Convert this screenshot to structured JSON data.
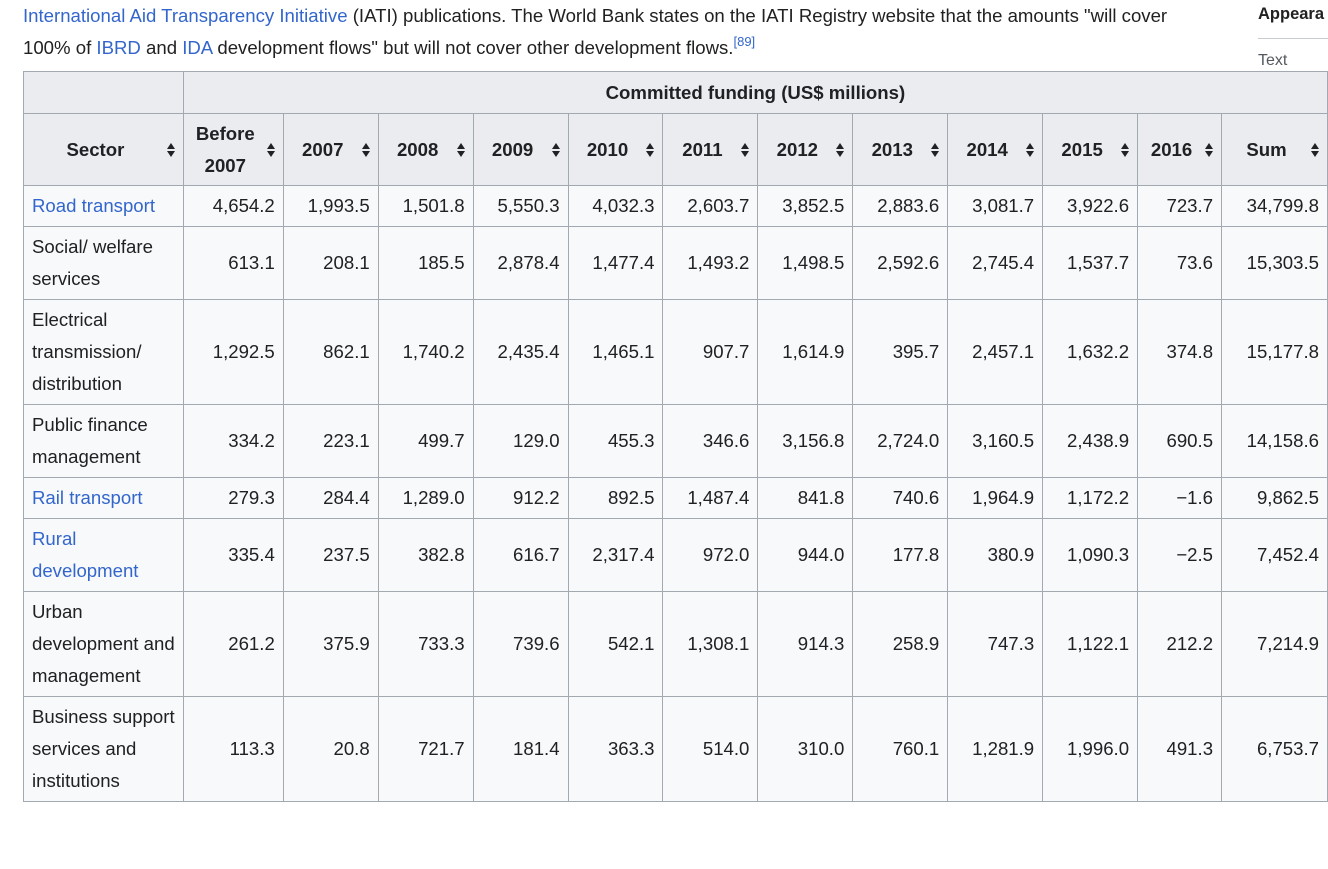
{
  "intro": {
    "link_iati": "International Aid Transparency Initiative",
    "text_1": " (IATI) publications. The World Bank states on the IATI Registry website that the amounts \"will cover 100% of ",
    "link_ibrd": "IBRD",
    "text_2": " and ",
    "link_ida": "IDA",
    "text_3": " development flows\" but will not cover other development flows.",
    "ref": "[89]"
  },
  "sidebar": {
    "title": "Appeara",
    "text_label": "Text"
  },
  "table": {
    "group_header": "Committed funding (US$ millions)",
    "sector_header": "Sector",
    "columns": [
      "Before 2007",
      "2007",
      "2008",
      "2009",
      "2010",
      "2011",
      "2012",
      "2013",
      "2014",
      "2015",
      "2016",
      "Sum"
    ],
    "rows": [
      {
        "sector": "Road transport",
        "is_link": true,
        "values": [
          "4,654.2",
          "1,993.5",
          "1,501.8",
          "5,550.3",
          "4,032.3",
          "2,603.7",
          "3,852.5",
          "2,883.6",
          "3,081.7",
          "3,922.6",
          "723.7",
          "34,799.8"
        ]
      },
      {
        "sector": "Social/ welfare services",
        "is_link": false,
        "values": [
          "613.1",
          "208.1",
          "185.5",
          "2,878.4",
          "1,477.4",
          "1,493.2",
          "1,498.5",
          "2,592.6",
          "2,745.4",
          "1,537.7",
          "73.6",
          "15,303.5"
        ]
      },
      {
        "sector": "Electrical transmission/ distribution",
        "is_link": false,
        "values": [
          "1,292.5",
          "862.1",
          "1,740.2",
          "2,435.4",
          "1,465.1",
          "907.7",
          "1,614.9",
          "395.7",
          "2,457.1",
          "1,632.2",
          "374.8",
          "15,177.8"
        ]
      },
      {
        "sector": "Public finance management",
        "is_link": false,
        "values": [
          "334.2",
          "223.1",
          "499.7",
          "129.0",
          "455.3",
          "346.6",
          "3,156.8",
          "2,724.0",
          "3,160.5",
          "2,438.9",
          "690.5",
          "14,158.6"
        ]
      },
      {
        "sector": "Rail transport",
        "is_link": true,
        "values": [
          "279.3",
          "284.4",
          "1,289.0",
          "912.2",
          "892.5",
          "1,487.4",
          "841.8",
          "740.6",
          "1,964.9",
          "1,172.2",
          "−1.6",
          "9,862.5"
        ]
      },
      {
        "sector": "Rural development",
        "is_link": true,
        "values": [
          "335.4",
          "237.5",
          "382.8",
          "616.7",
          "2,317.4",
          "972.0",
          "944.0",
          "177.8",
          "380.9",
          "1,090.3",
          "−2.5",
          "7,452.4"
        ]
      },
      {
        "sector": "Urban development and management",
        "is_link": false,
        "values": [
          "261.2",
          "375.9",
          "733.3",
          "739.6",
          "542.1",
          "1,308.1",
          "914.3",
          "258.9",
          "747.3",
          "1,122.1",
          "212.2",
          "7,214.9"
        ]
      },
      {
        "sector": "Business support services and institutions",
        "is_link": false,
        "values": [
          "113.3",
          "20.8",
          "721.7",
          "181.4",
          "363.3",
          "514.0",
          "310.0",
          "760.1",
          "1,281.9",
          "1,996.0",
          "491.3",
          "6,753.7"
        ]
      }
    ]
  }
}
